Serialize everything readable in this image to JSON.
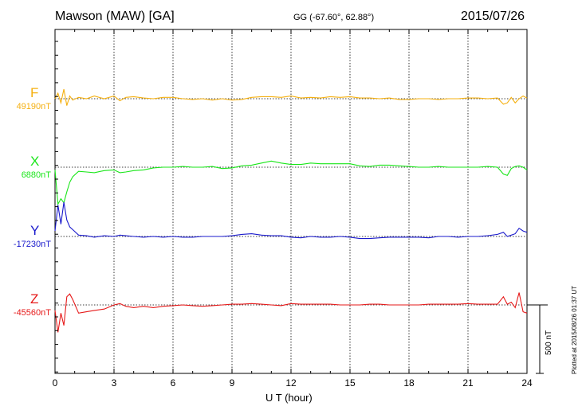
{
  "header": {
    "title": "Mawson (MAW)  [GA]",
    "coords": "GG (-67.60°,  62.88°)",
    "date": "2015/07/26"
  },
  "plotted_note": "Plotted at 2015/08/26 01:37 UT",
  "scale_label": "500 nT",
  "colors": {
    "F": "#f5b010",
    "X": "#19e619",
    "Y": "#1a1acc",
    "Z": "#e61919"
  },
  "chart_data": {
    "type": "line",
    "xlabel": "U T (hour)",
    "xlim": [
      0,
      24
    ],
    "xticks": [
      "0",
      "3",
      "6",
      "9",
      "12",
      "15",
      "18",
      "21",
      "24"
    ],
    "scale_bar_nT": 500,
    "x": [
      0,
      0.15,
      0.3,
      0.45,
      0.6,
      0.75,
      0.9,
      1.2,
      1.6,
      2,
      2.5,
      3,
      3.3,
      3.6,
      4,
      4.5,
      5,
      5.5,
      6,
      6.5,
      7,
      7.5,
      8,
      8.5,
      9,
      9.5,
      10,
      10.5,
      11,
      11.5,
      12,
      12.5,
      13,
      13.5,
      14,
      14.5,
      15,
      15.5,
      16,
      16.5,
      17,
      17.5,
      18,
      18.5,
      19,
      19.5,
      20,
      20.5,
      21,
      21.5,
      22,
      22.5,
      22.8,
      23,
      23.2,
      23.4,
      23.6,
      23.8,
      24
    ],
    "series": [
      {
        "name": "F",
        "baseline_label": "49190nT",
        "baseline_nT": 49190,
        "values": [
          0,
          40,
          -30,
          70,
          -50,
          20,
          -10,
          10,
          0,
          20,
          0,
          20,
          -15,
          10,
          15,
          5,
          0,
          10,
          10,
          0,
          -5,
          0,
          -10,
          0,
          -10,
          -5,
          10,
          15,
          15,
          10,
          20,
          5,
          10,
          5,
          15,
          10,
          15,
          5,
          5,
          0,
          5,
          -5,
          -5,
          0,
          0,
          -5,
          0,
          0,
          5,
          5,
          0,
          5,
          -40,
          -30,
          10,
          -30,
          0,
          20,
          5
        ]
      },
      {
        "name": "X",
        "baseline_label": "6880nT",
        "baseline_nT": 6880,
        "values": [
          -20,
          -270,
          -230,
          -260,
          -180,
          -110,
          -70,
          -30,
          -35,
          -40,
          -25,
          -20,
          -40,
          -35,
          -25,
          -20,
          -5,
          0,
          0,
          5,
          0,
          0,
          5,
          -10,
          -5,
          10,
          15,
          30,
          45,
          30,
          20,
          20,
          30,
          25,
          25,
          25,
          25,
          10,
          5,
          15,
          15,
          10,
          5,
          0,
          0,
          5,
          0,
          0,
          0,
          0,
          5,
          0,
          -50,
          -60,
          -10,
          5,
          10,
          0,
          -20
        ]
      },
      {
        "name": "Y",
        "baseline_label": "-17230nT",
        "baseline_nT": -17230,
        "values": [
          40,
          230,
          90,
          250,
          120,
          70,
          50,
          10,
          5,
          -5,
          5,
          0,
          10,
          5,
          0,
          -5,
          0,
          -5,
          0,
          -5,
          -5,
          0,
          0,
          0,
          5,
          15,
          20,
          10,
          5,
          5,
          -5,
          -10,
          0,
          -5,
          -5,
          0,
          -5,
          -15,
          -15,
          -10,
          -5,
          -5,
          -5,
          -5,
          -10,
          0,
          0,
          -5,
          0,
          0,
          5,
          15,
          30,
          0,
          10,
          20,
          60,
          40,
          30
        ]
      },
      {
        "name": "Z",
        "baseline_label": "-45560nT",
        "baseline_nT": -45560,
        "values": [
          -40,
          -200,
          -60,
          -150,
          60,
          80,
          40,
          -60,
          -50,
          -40,
          -30,
          0,
          10,
          -10,
          -20,
          -10,
          -20,
          -10,
          -5,
          0,
          -5,
          -10,
          -5,
          0,
          5,
          5,
          10,
          5,
          0,
          -5,
          10,
          5,
          5,
          5,
          5,
          0,
          0,
          0,
          5,
          5,
          0,
          0,
          0,
          0,
          5,
          5,
          5,
          5,
          10,
          5,
          5,
          5,
          60,
          5,
          20,
          -20,
          90,
          -50,
          -60
        ]
      }
    ]
  }
}
